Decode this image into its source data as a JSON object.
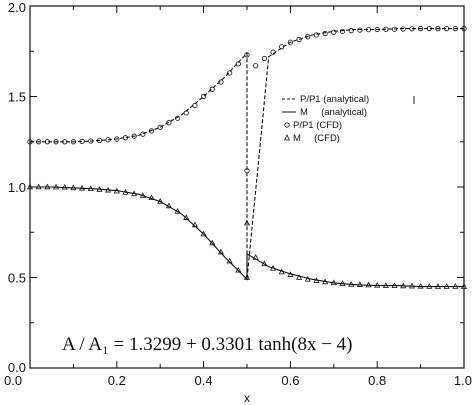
{
  "chart_data": {
    "type": "line",
    "xlabel": "x",
    "ylabel": "",
    "xlim": [
      0.0,
      1.0
    ],
    "ylim": [
      0.0,
      2.0
    ],
    "xticks": [
      "0.0",
      "0.2",
      "0.4",
      "0.6",
      "0.8",
      "1.0"
    ],
    "yticks": [
      "0.0",
      "0.5",
      "1.0",
      "1.5",
      "2.0"
    ],
    "grid": false,
    "legend_position": "center-right",
    "annotation": "A / A₁ = 1.3299 + 0.3301 tanh(8x − 4)",
    "shock_x": 0.5,
    "series": [
      {
        "name": "P/P1 (analytical)",
        "style": "dashed",
        "x": [
          0.0,
          0.05,
          0.1,
          0.15,
          0.2,
          0.25,
          0.3,
          0.35,
          0.4,
          0.45,
          0.5,
          0.5,
          0.55,
          0.6,
          0.65,
          0.7,
          0.75,
          0.8,
          0.85,
          0.9,
          0.95,
          1.0
        ],
        "y": [
          1.25,
          1.25,
          1.25,
          1.255,
          1.265,
          1.285,
          1.33,
          1.4,
          1.5,
          1.61,
          1.74,
          0.49,
          1.72,
          1.8,
          1.84,
          1.86,
          1.87,
          1.87,
          1.875,
          1.875,
          1.875,
          1.875
        ]
      },
      {
        "name": "M     (analytical)",
        "style": "solid",
        "x": [
          0.0,
          0.05,
          0.1,
          0.15,
          0.2,
          0.25,
          0.3,
          0.35,
          0.4,
          0.45,
          0.5,
          0.5,
          0.55,
          0.6,
          0.65,
          0.7,
          0.75,
          0.8,
          0.85,
          0.9,
          0.95,
          1.0
        ],
        "y": [
          1.0,
          1.0,
          0.995,
          0.99,
          0.98,
          0.96,
          0.92,
          0.85,
          0.74,
          0.61,
          0.49,
          0.63,
          0.56,
          0.52,
          0.49,
          0.47,
          0.46,
          0.455,
          0.455,
          0.45,
          0.45,
          0.45
        ]
      },
      {
        "name": "P/P1 (CFD)",
        "marker": "circle",
        "x": [
          0.0,
          0.02,
          0.04,
          0.06,
          0.08,
          0.1,
          0.12,
          0.14,
          0.16,
          0.18,
          0.2,
          0.22,
          0.24,
          0.26,
          0.28,
          0.3,
          0.32,
          0.34,
          0.36,
          0.38,
          0.4,
          0.42,
          0.44,
          0.46,
          0.48,
          0.5,
          0.5,
          0.52,
          0.54,
          0.56,
          0.58,
          0.6,
          0.62,
          0.64,
          0.66,
          0.68,
          0.7,
          0.72,
          0.74,
          0.76,
          0.78,
          0.8,
          0.82,
          0.84,
          0.86,
          0.88,
          0.9,
          0.92,
          0.94,
          0.96,
          0.98,
          1.0
        ],
        "y": [
          1.25,
          1.25,
          1.25,
          1.25,
          1.25,
          1.25,
          1.252,
          1.254,
          1.257,
          1.261,
          1.265,
          1.272,
          1.281,
          1.292,
          1.31,
          1.33,
          1.355,
          1.38,
          1.41,
          1.45,
          1.5,
          1.54,
          1.58,
          1.63,
          1.68,
          1.73,
          1.09,
          1.67,
          1.71,
          1.745,
          1.775,
          1.8,
          1.815,
          1.83,
          1.84,
          1.848,
          1.855,
          1.86,
          1.864,
          1.867,
          1.869,
          1.87,
          1.871,
          1.872,
          1.873,
          1.874,
          1.875,
          1.875,
          1.875,
          1.875,
          1.875,
          1.875
        ]
      },
      {
        "name": "M     (CFD)",
        "marker": "triangle",
        "x": [
          0.0,
          0.02,
          0.04,
          0.06,
          0.08,
          0.1,
          0.12,
          0.14,
          0.16,
          0.18,
          0.2,
          0.22,
          0.24,
          0.26,
          0.28,
          0.3,
          0.32,
          0.34,
          0.36,
          0.38,
          0.4,
          0.42,
          0.44,
          0.46,
          0.48,
          0.5,
          0.5,
          0.52,
          0.54,
          0.56,
          0.58,
          0.6,
          0.62,
          0.64,
          0.66,
          0.68,
          0.7,
          0.72,
          0.74,
          0.76,
          0.78,
          0.8,
          0.82,
          0.84,
          0.86,
          0.88,
          0.9,
          0.92,
          0.94,
          0.96,
          0.98,
          1.0
        ],
        "y": [
          1.0,
          1.0,
          1.0,
          0.999,
          0.998,
          0.995,
          0.993,
          0.99,
          0.986,
          0.982,
          0.977,
          0.97,
          0.962,
          0.952,
          0.94,
          0.92,
          0.895,
          0.865,
          0.83,
          0.79,
          0.74,
          0.69,
          0.64,
          0.59,
          0.54,
          0.5,
          0.8,
          0.61,
          0.575,
          0.55,
          0.53,
          0.515,
          0.5,
          0.49,
          0.482,
          0.475,
          0.47,
          0.466,
          0.462,
          0.46,
          0.458,
          0.456,
          0.455,
          0.454,
          0.453,
          0.452,
          0.451,
          0.45,
          0.45,
          0.45,
          0.45,
          0.45
        ]
      }
    ]
  }
}
